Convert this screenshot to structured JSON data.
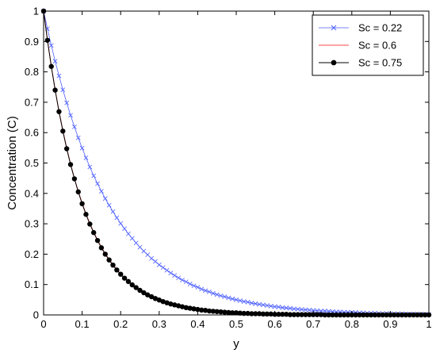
{
  "chart_data": {
    "type": "line",
    "title": "",
    "xlabel": "y",
    "ylabel": "Concentration (C)",
    "xlim": [
      0,
      1
    ],
    "ylim": [
      0,
      1
    ],
    "xticks": [
      "0",
      "0.1",
      "0.2",
      "0.3",
      "0.4",
      "0.5",
      "0.6",
      "0.7",
      "0.8",
      "0.9",
      "1"
    ],
    "yticks": [
      "0",
      "0.1",
      "0.2",
      "0.3",
      "0.4",
      "0.5",
      "0.6",
      "0.7",
      "0.8",
      "0.9",
      "1"
    ],
    "grid": false,
    "legend_position": "top-right",
    "x": [
      0,
      0.01,
      0.02,
      0.03,
      0.04,
      0.05,
      0.06,
      0.07,
      0.08,
      0.09,
      0.1,
      0.11,
      0.12,
      0.13,
      0.14,
      0.15,
      0.16,
      0.17,
      0.18,
      0.19,
      0.2,
      0.21,
      0.22,
      0.23,
      0.24,
      0.25,
      0.26,
      0.27,
      0.28,
      0.29,
      0.3,
      0.31,
      0.32,
      0.33,
      0.34,
      0.35,
      0.36,
      0.37,
      0.38,
      0.39,
      0.4,
      0.41,
      0.42,
      0.43,
      0.44,
      0.45,
      0.46,
      0.47,
      0.48,
      0.49,
      0.5,
      0.51,
      0.52,
      0.53,
      0.54,
      0.55,
      0.56,
      0.57,
      0.58,
      0.59,
      0.6,
      0.61,
      0.62,
      0.63,
      0.64,
      0.65,
      0.66,
      0.67,
      0.68,
      0.69,
      0.7,
      0.71,
      0.72,
      0.73,
      0.74,
      0.75,
      0.76,
      0.77,
      0.78,
      0.79,
      0.8,
      0.81,
      0.82,
      0.83,
      0.84,
      0.85,
      0.86,
      0.87,
      0.88,
      0.89,
      0.9,
      0.91,
      0.92,
      0.93,
      0.94,
      0.95,
      0.96,
      0.97,
      0.98,
      0.99,
      1
    ],
    "series": [
      {
        "name": "Sc = 0.22",
        "color": "#4a5cff",
        "marker": "x",
        "values": [
          1,
          0.942,
          0.887,
          0.835,
          0.787,
          0.741,
          0.698,
          0.657,
          0.619,
          0.583,
          0.549,
          0.517,
          0.487,
          0.458,
          0.432,
          0.407,
          0.383,
          0.361,
          0.34,
          0.32,
          0.301,
          0.284,
          0.267,
          0.252,
          0.237,
          0.223,
          0.21,
          0.198,
          0.186,
          0.176,
          0.165,
          0.156,
          0.147,
          0.138,
          0.13,
          0.122,
          0.115,
          0.109,
          0.102,
          0.096,
          0.091,
          0.085,
          0.08,
          0.076,
          0.071,
          0.067,
          0.063,
          0.06,
          0.056,
          0.053,
          0.05,
          0.047,
          0.044,
          0.042,
          0.039,
          0.037,
          0.035,
          0.033,
          0.031,
          0.029,
          0.027,
          0.026,
          0.024,
          0.023,
          0.022,
          0.02,
          0.019,
          0.018,
          0.017,
          0.016,
          0.015,
          0.014,
          0.013,
          0.013,
          0.012,
          0.011,
          0.01,
          0.01,
          0.009,
          0.009,
          0.008,
          0.008,
          0.007,
          0.007,
          0.006,
          0.006,
          0.006,
          0.005,
          0.005,
          0.005,
          0.004,
          0.004,
          0.004,
          0.004,
          0.003,
          0.003,
          0.003,
          0.003,
          0.003,
          0.002,
          0.002
        ]
      },
      {
        "name": "Sc = 0.6",
        "color": "#ff4a4a",
        "marker": "none",
        "values": [
          1,
          0.905,
          0.819,
          0.741,
          0.67,
          0.607,
          0.549,
          0.497,
          0.449,
          0.407,
          0.368,
          0.333,
          0.301,
          0.273,
          0.247,
          0.223,
          0.202,
          0.183,
          0.165,
          0.15,
          0.135,
          0.122,
          0.111,
          0.1,
          0.091,
          0.082,
          0.074,
          0.067,
          0.061,
          0.055,
          0.05,
          0.045,
          0.041,
          0.037,
          0.033,
          0.03,
          0.027,
          0.025,
          0.022,
          0.02,
          0.018,
          0.017,
          0.015,
          0.014,
          0.012,
          0.011,
          0.01,
          0.009,
          0.008,
          0.007,
          0.007,
          0.006,
          0.006,
          0.005,
          0.005,
          0.004,
          0.004,
          0.003,
          0.003,
          0.003,
          0.002,
          0.002,
          0.002,
          0.002,
          0.002,
          0.002,
          0.001,
          0.001,
          0.001,
          0.001,
          0.001,
          0.001,
          0.001,
          0.001,
          0.001,
          0.001,
          0,
          0,
          0,
          0,
          0,
          0,
          0,
          0,
          0,
          0,
          0,
          0,
          0,
          0,
          0,
          0,
          0,
          0,
          0,
          0,
          0,
          0,
          0,
          0,
          0
        ]
      },
      {
        "name": "Sc = 0.75",
        "color": "#000000",
        "marker": "filled-circle",
        "values": [
          1,
          0.904,
          0.818,
          0.74,
          0.669,
          0.605,
          0.547,
          0.495,
          0.448,
          0.405,
          0.366,
          0.331,
          0.299,
          0.271,
          0.245,
          0.221,
          0.2,
          0.181,
          0.164,
          0.148,
          0.134,
          0.121,
          0.11,
          0.099,
          0.09,
          0.081,
          0.073,
          0.066,
          0.06,
          0.054,
          0.049,
          0.044,
          0.04,
          0.036,
          0.033,
          0.03,
          0.027,
          0.024,
          0.022,
          0.02,
          0.018,
          0.016,
          0.015,
          0.013,
          0.012,
          0.011,
          0.01,
          0.009,
          0.008,
          0.007,
          0.007,
          0.006,
          0.005,
          0.005,
          0.004,
          0.004,
          0.004,
          0.003,
          0.003,
          0.003,
          0.002,
          0.002,
          0.002,
          0.002,
          0.001,
          0.001,
          0.001,
          0.001,
          0.001,
          0.001,
          0.001,
          0.001,
          0.001,
          0,
          0,
          0,
          0,
          0,
          0,
          0,
          0,
          0,
          0,
          0,
          0,
          0,
          0,
          0,
          0,
          0,
          0,
          0,
          0,
          0,
          0,
          0,
          0,
          0,
          0,
          0,
          0
        ]
      }
    ]
  }
}
